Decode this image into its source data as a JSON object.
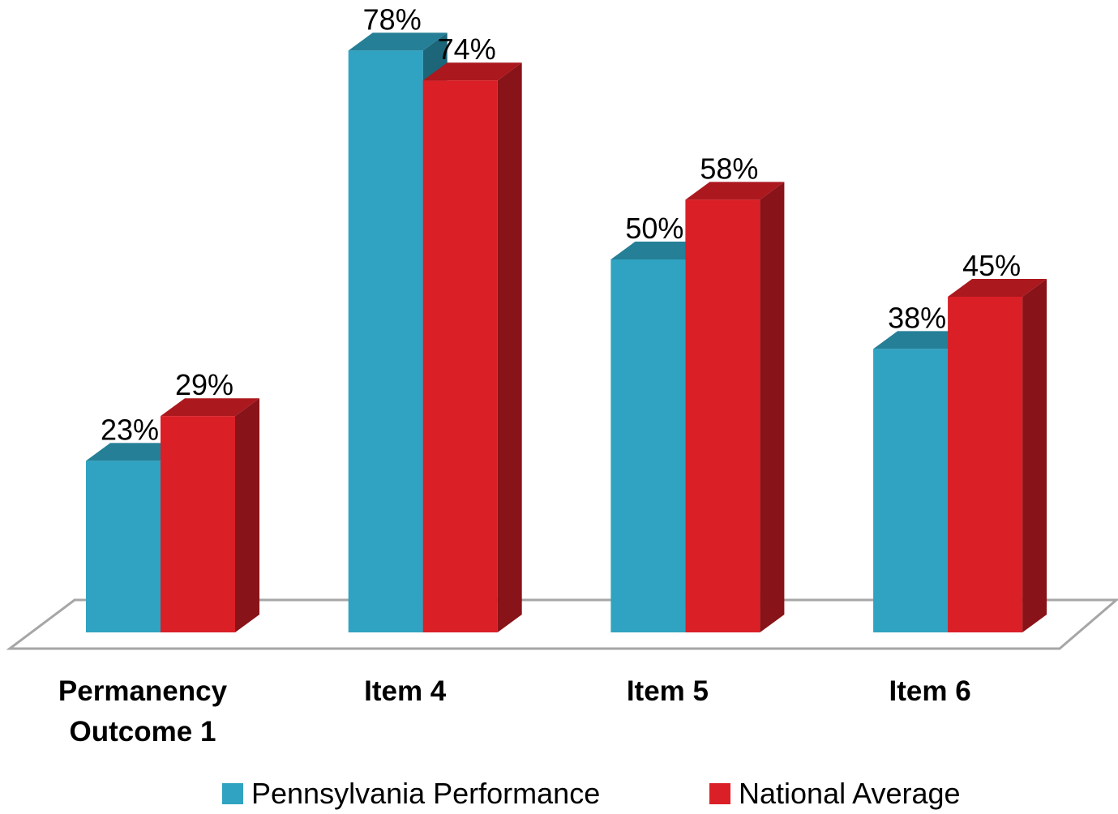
{
  "chart_data": {
    "type": "bar3d",
    "categories": [
      "Permanency Outcome 1",
      "Item 4",
      "Item 5",
      "Item 6"
    ],
    "series": [
      {
        "name": "Pennsylvania Performance",
        "color": "#2fa3c1",
        "values": [
          23,
          78,
          50,
          38
        ],
        "value_labels": [
          "23%",
          "78%",
          "50%",
          "38%"
        ]
      },
      {
        "name": "National Average",
        "color": "#db1f26",
        "values": [
          29,
          74,
          58,
          45
        ],
        "value_labels": [
          "29%",
          "74%",
          "58%",
          "45%"
        ]
      }
    ],
    "legend": "bottom"
  }
}
